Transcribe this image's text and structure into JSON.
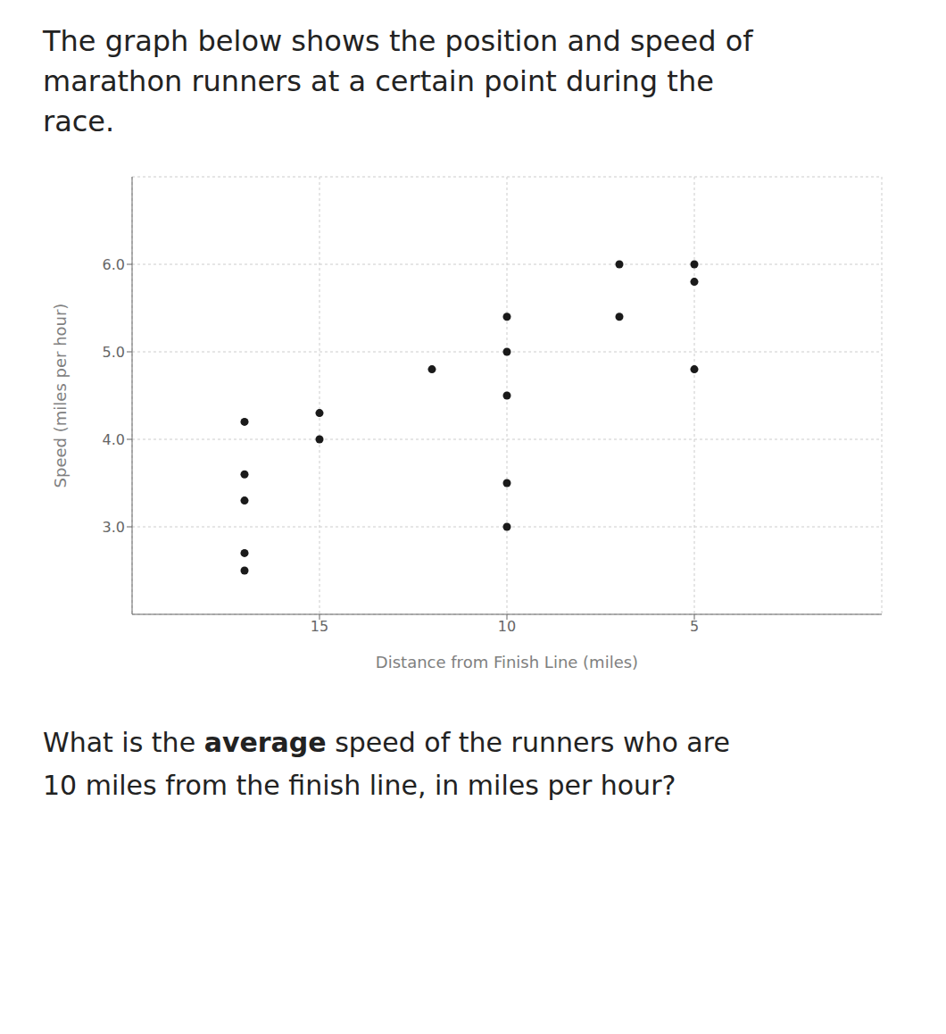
{
  "chart_data": {
    "type": "scatter",
    "title": "The graph below shows the position and speed of\nmarathon runners at a certain point during the\nrace.",
    "x_label": "Distance from Finish Line (miles)",
    "y_label": "Speed (miles per hour)",
    "x": [
      17,
      17,
      17,
      17,
      17,
      15,
      15,
      12,
      10,
      10,
      10,
      10,
      10,
      7,
      7,
      5,
      5,
      5
    ],
    "values": [
      4.2,
      3.6,
      3.3,
      2.7,
      2.5,
      4.3,
      4.0,
      4.8,
      5.4,
      5.0,
      4.5,
      3.5,
      3.0,
      6.0,
      5.4,
      6.0,
      5.8,
      4.8
    ],
    "color": "#1a1a1a",
    "xlim": [
      20,
      0
    ],
    "ylim": [
      2.0,
      7.0
    ],
    "xticks": [
      15,
      10,
      5
    ],
    "yticks": [
      {
        "value": 3.0,
        "label": "3.0"
      },
      {
        "value": 4.0,
        "label": "4.0"
      },
      {
        "value": 5.0,
        "label": "5.0"
      },
      {
        "value": 6.0,
        "label": "6.0"
      }
    ],
    "grid": true,
    "annotations": [
      [
        "What is the ",
        "average",
        " speed of the runners who are"
      ],
      [
        "10 miles from the finish line, in miles per hour?"
      ]
    ]
  }
}
